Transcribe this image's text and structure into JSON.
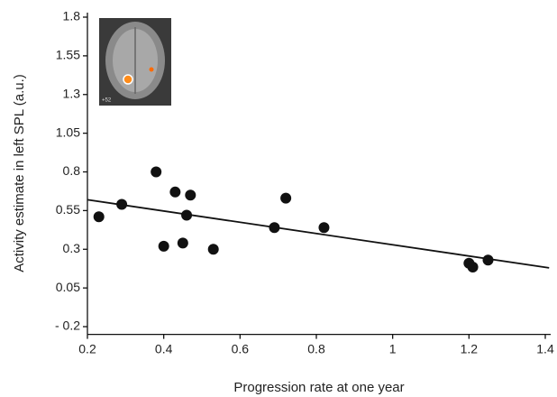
{
  "chart_data": {
    "type": "scatter",
    "xlabel": "Progression rate at one year",
    "ylabel": "Activity estimate in left SPL (a.u.)",
    "inset_label": "+52",
    "x": [
      0.23,
      0.29,
      0.38,
      0.43,
      0.47,
      0.46,
      0.4,
      0.45,
      0.53,
      0.69,
      0.72,
      0.82,
      1.2,
      1.21,
      1.25
    ],
    "values": [
      0.51,
      0.59,
      0.8,
      0.67,
      0.65,
      0.52,
      0.32,
      0.34,
      0.3,
      0.44,
      0.63,
      0.44,
      0.21,
      0.185,
      0.23
    ],
    "color": "#111111",
    "fit_line": {
      "x": [
        0.2,
        1.41
      ],
      "y": [
        0.62,
        0.18
      ]
    },
    "xlim": [
      0.2,
      1.4
    ],
    "ylim": [
      -0.25,
      1.8
    ],
    "xticks": [
      0.2,
      0.4,
      0.6,
      0.8,
      1,
      1.2,
      1.4
    ],
    "yticks": [
      1.8,
      1.55,
      1.3,
      1.05,
      0.8,
      0.55,
      0.3,
      0.05,
      {
        "value": -0.2,
        "label": "- 0.2"
      }
    ]
  }
}
